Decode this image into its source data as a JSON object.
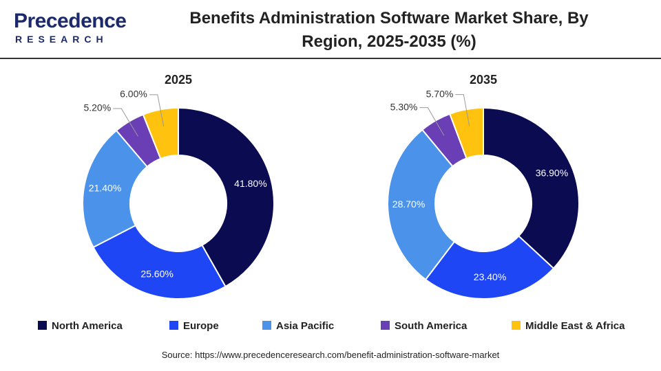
{
  "header": {
    "logo_top": "Precedence",
    "logo_bottom": "RESEARCH",
    "title": "Benefits Administration Software Market Share, By Region, 2025-2035 (%)"
  },
  "chart_data": [
    {
      "type": "pie",
      "title": "2025",
      "categories": [
        "North America",
        "Europe",
        "Asia Pacific",
        "South America",
        "Middle East & Africa"
      ],
      "values": [
        41.8,
        25.6,
        21.4,
        5.2,
        6.0
      ],
      "value_labels": [
        "41.80%",
        "25.60%",
        "21.40%",
        "5.20%",
        "6.00%"
      ],
      "colors": [
        "#0b0b52",
        "#1f46f5",
        "#4a92ea",
        "#6a3fb5",
        "#ffc20e"
      ]
    },
    {
      "type": "pie",
      "title": "2035",
      "categories": [
        "North America",
        "Europe",
        "Asia Pacific",
        "South America",
        "Middle East & Africa"
      ],
      "values": [
        36.9,
        23.4,
        28.7,
        5.3,
        5.7
      ],
      "value_labels": [
        "36.90%",
        "23.40%",
        "28.70%",
        "5.30%",
        "5.70%"
      ],
      "colors": [
        "#0b0b52",
        "#1f46f5",
        "#4a92ea",
        "#6a3fb5",
        "#ffc20e"
      ]
    }
  ],
  "source": "Source: https://www.precedenceresearch.com/benefit-administration-software-market"
}
